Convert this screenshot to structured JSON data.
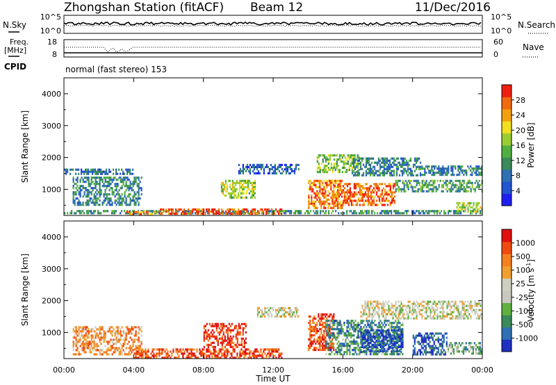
{
  "header": {
    "station": "Zhongshan Station (fitACF)",
    "beam": "Beam 12",
    "date": "11/Dec/2016"
  },
  "noise_panel": {
    "left_label": "N.Sky",
    "left_ticks": [
      "10^5",
      "10^0"
    ],
    "right_ticks": [
      "10^5",
      "10^0"
    ],
    "right_label": "N.Search"
  },
  "freq_panel": {
    "left_label_1": "Freq.",
    "left_label_2": "[MHz]",
    "left_ticks": [
      "18",
      "8"
    ],
    "right_ticks": [
      "60",
      "0"
    ],
    "right_label": "Nave"
  },
  "cpid": {
    "label": "CPID",
    "value": "normal (fast stereo) 153"
  },
  "colors": {
    "power": [
      "#1e1ef0",
      "#2255d0",
      "#2f6fb4",
      "#3a8a5a",
      "#50b040",
      "#9acd32",
      "#f0e020",
      "#f3a010",
      "#f06a10",
      "#f02010"
    ],
    "velocity": [
      "#e01010",
      "#f04a10",
      "#f58020",
      "#f0a030",
      "#cfcfc0",
      "#c9c9c0",
      "#60b040",
      "#3a8a5a",
      "#2f6fb4",
      "#1e30c0"
    ]
  },
  "chart_data": [
    {
      "type": "heatmap",
      "title": "Power",
      "xlabel": "Time UT",
      "ylabel": "Slant Range [km]",
      "xticks": [
        "00:00",
        "04:00",
        "08:00",
        "12:00",
        "16:00",
        "20:00",
        "00:00"
      ],
      "xlim_hours": [
        0,
        24
      ],
      "yticks": [
        1000,
        2000,
        3000,
        4000
      ],
      "ylim": [
        180,
        4500
      ],
      "colorbar": {
        "label": "Power [dB]",
        "ticks": [
          4,
          8,
          12,
          16,
          20,
          24,
          28
        ],
        "range": [
          0,
          30
        ]
      },
      "echo_regions": [
        {
          "t": [
            0.0,
            24.0
          ],
          "r": [
            250,
            350
          ],
          "level": 0.35
        },
        {
          "t": [
            3.5,
            5.5
          ],
          "r": [
            200,
            320
          ],
          "level": 0.8
        },
        {
          "t": [
            5.5,
            12.5
          ],
          "r": [
            200,
            400
          ],
          "level": 0.9
        },
        {
          "t": [
            0.0,
            4.0
          ],
          "r": [
            1450,
            1650
          ],
          "level": 0.25
        },
        {
          "t": [
            0.5,
            4.5
          ],
          "r": [
            500,
            1400
          ],
          "level": 0.3
        },
        {
          "t": [
            9.0,
            11.0
          ],
          "r": [
            700,
            1300
          ],
          "level": 0.55
        },
        {
          "t": [
            10.0,
            13.5
          ],
          "r": [
            1500,
            1800
          ],
          "level": 0.2
        },
        {
          "t": [
            14.0,
            16.0
          ],
          "r": [
            400,
            1300
          ],
          "level": 0.8
        },
        {
          "t": [
            15.5,
            19.0
          ],
          "r": [
            500,
            1200
          ],
          "level": 0.85
        },
        {
          "t": [
            14.5,
            17.0
          ],
          "r": [
            1500,
            2100
          ],
          "level": 0.5
        },
        {
          "t": [
            16.5,
            20.5
          ],
          "r": [
            1400,
            2000
          ],
          "level": 0.3
        },
        {
          "t": [
            19.0,
            24.0
          ],
          "r": [
            900,
            1300
          ],
          "level": 0.4
        },
        {
          "t": [
            20.5,
            24.0
          ],
          "r": [
            1450,
            1750
          ],
          "level": 0.3
        },
        {
          "t": [
            22.5,
            24.0
          ],
          "r": [
            300,
            600
          ],
          "level": 0.6
        }
      ]
    },
    {
      "type": "heatmap",
      "title": "Velocity",
      "xlabel": "Time UT",
      "ylabel": "Slant Range [km]",
      "xticks": [
        "00:00",
        "04:00",
        "08:00",
        "12:00",
        "16:00",
        "20:00",
        "00:00"
      ],
      "xlim_hours": [
        0,
        24
      ],
      "yticks": [
        1000,
        2000,
        3000,
        4000
      ],
      "ylim": [
        180,
        4500
      ],
      "colorbar": {
        "label": "Velocity [m s",
        "label_sup": "-1",
        "label_end": "]",
        "ticks": [
          "1000",
          "500",
          "100",
          "25",
          "-25",
          "-100",
          "-500",
          "-1000"
        ]
      },
      "echo_regions": [
        {
          "t": [
            0.5,
            4.5
          ],
          "r": [
            300,
            1200
          ],
          "level": 0.3
        },
        {
          "t": [
            4.0,
            12.5
          ],
          "r": [
            200,
            500
          ],
          "level": 0.15
        },
        {
          "t": [
            8.0,
            10.5
          ],
          "r": [
            500,
            1300
          ],
          "level": 0.1
        },
        {
          "t": [
            11.0,
            13.5
          ],
          "r": [
            1450,
            1800
          ],
          "level": 0.5
        },
        {
          "t": [
            14.0,
            15.5
          ],
          "r": [
            400,
            1600
          ],
          "level": 0.15
        },
        {
          "t": [
            15.0,
            19.5
          ],
          "r": [
            300,
            1400
          ],
          "level": 0.75
        },
        {
          "t": [
            17.0,
            19.5
          ],
          "r": [
            400,
            1100
          ],
          "level": 0.9
        },
        {
          "t": [
            17.0,
            24.0
          ],
          "r": [
            1400,
            2000
          ],
          "level": 0.5
        },
        {
          "t": [
            20.0,
            22.0
          ],
          "r": [
            300,
            1000
          ],
          "level": 0.9
        },
        {
          "t": [
            22.0,
            24.0
          ],
          "r": [
            300,
            700
          ],
          "level": 0.65
        }
      ]
    }
  ]
}
